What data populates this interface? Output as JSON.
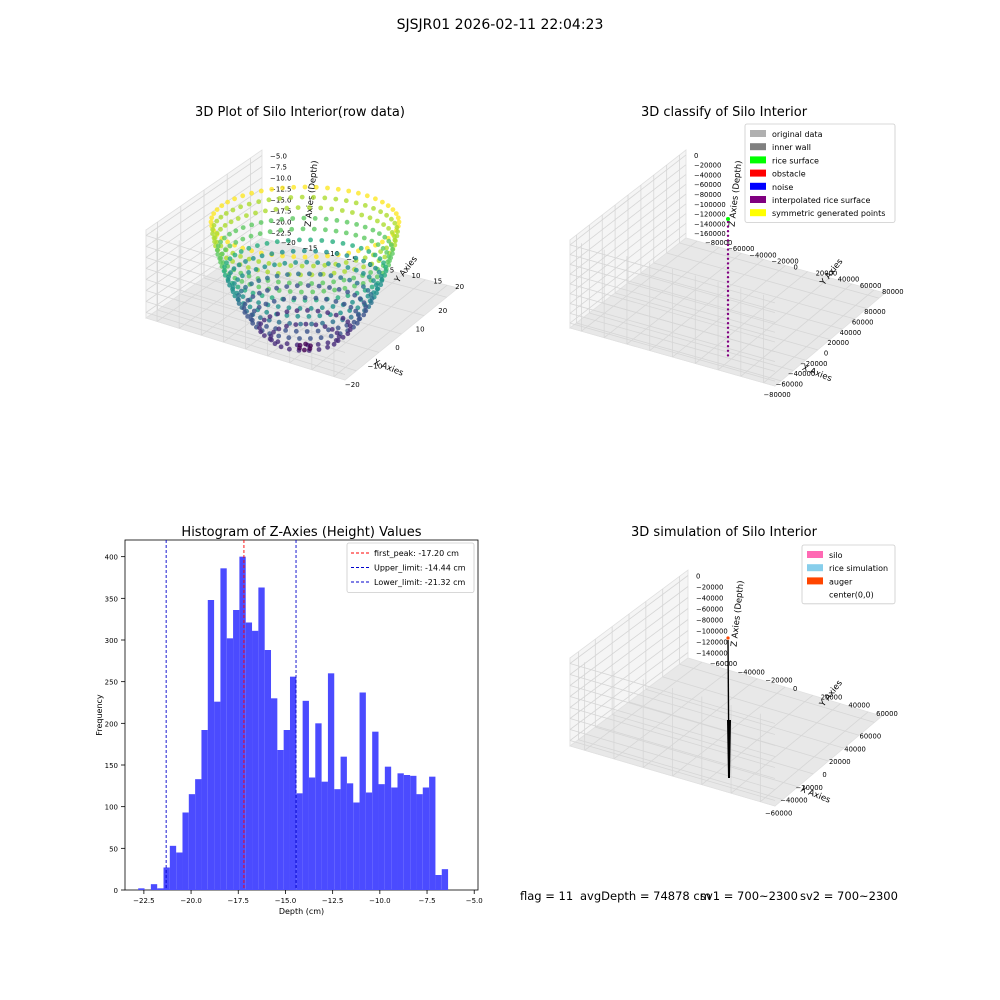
{
  "suptitle": "SJSJR01 2026-02-11 22:04:23",
  "footer": {
    "flag": "flag = 11",
    "avg_depth": "avgDepth = 74878 cm",
    "sv1": "sv1 = 700~2300",
    "sv2": "sv2 = 700~2300"
  },
  "colors": {
    "histogram_bar": "#4b4bff",
    "peak_line": "#ff0000",
    "limit_line": "#0000cc",
    "pane_fill": "#f2f2f2",
    "grid": "#d9d9d9"
  },
  "chart_data": [
    {
      "id": "raw3d",
      "type": "scatter",
      "projection": "3d",
      "title": "3D Plot of Silo Interior(row data)",
      "xlabel": "X Axies",
      "ylabel": "Y Axies",
      "zlabel": "Z Axies (Depth)",
      "xlim": [
        -24,
        22
      ],
      "ylim": [
        -22,
        22
      ],
      "zlim": [
        -24,
        -4
      ],
      "x_ticks": [
        "−20",
        "−10",
        "0",
        "10",
        "20"
      ],
      "y_ticks": [
        "−20",
        "−15",
        "−10",
        "−5",
        "0",
        "5",
        "10",
        "15",
        "20"
      ],
      "z_ticks": [
        "−5.0",
        "−7.5",
        "−10.0",
        "−12.5",
        "−15.0",
        "−17.5",
        "−20.0",
        "−22.5"
      ],
      "colormap": "viridis",
      "shape": "bowl",
      "bowl_rim_radius": 20,
      "bowl_top_depth": -5,
      "bowl_bottom_depth": -23,
      "grid": true
    },
    {
      "id": "classify3d",
      "type": "scatter",
      "projection": "3d",
      "title": "3D classify of Silo Interior",
      "xlabel": "X Axies",
      "ylabel": "Y Axies",
      "zlabel": "Z Axies (Depth)",
      "xlim": [
        -90000,
        90000
      ],
      "ylim": [
        -90000,
        90000
      ],
      "zlim": [
        -170000,
        5000
      ],
      "x_ticks": [
        "−80000",
        "−60000",
        "−40000",
        "−20000",
        "0",
        "20000",
        "40000",
        "60000",
        "80000"
      ],
      "y_ticks": [
        "−80000",
        "−60000",
        "−40000",
        "−20000",
        "0",
        "20000",
        "40000",
        "60000",
        "80000"
      ],
      "z_ticks": [
        "0",
        "−20000",
        "−40000",
        "−60000",
        "−80000",
        "−100000",
        "−120000",
        "−140000",
        "−160000"
      ],
      "legend_position": "top-right",
      "legend": [
        {
          "label": "original data",
          "color": "#b0b0b0"
        },
        {
          "label": "inner wall",
          "color": "#808080"
        },
        {
          "label": "rice surface",
          "color": "#00ff00"
        },
        {
          "label": "obstacle",
          "color": "#ff0000"
        },
        {
          "label": "noise",
          "color": "#0000ff"
        },
        {
          "label": "interpolated rice surface",
          "color": "#800080"
        },
        {
          "label": "symmetric generated points",
          "color": "#ffff00"
        }
      ],
      "grid": true
    },
    {
      "id": "histogram",
      "type": "bar",
      "title": "Histogram of Z-Axies (Height) Values",
      "xlabel": "Depth (cm)",
      "ylabel": "Frequency",
      "xlim": [
        -23.5,
        -4.8
      ],
      "ylim": [
        0,
        420
      ],
      "x_ticks": [
        -22.5,
        -20.0,
        -17.5,
        -15.0,
        -12.5,
        -10.0,
        -7.5,
        -5.0
      ],
      "x_tick_labels": [
        "−22.5",
        "−20.0",
        "−17.5",
        "−15.0",
        "−12.5",
        "−10.0",
        "−7.5",
        "−5.0"
      ],
      "y_ticks": [
        0,
        50,
        100,
        150,
        200,
        250,
        300,
        350,
        400
      ],
      "bin_start": -22.8,
      "bin_width": 0.335,
      "values": [
        2,
        0,
        7,
        2,
        27,
        53,
        45,
        93,
        115,
        133,
        192,
        348,
        226,
        386,
        302,
        336,
        400,
        321,
        311,
        363,
        288,
        230,
        168,
        192,
        256,
        116,
        227,
        135,
        200,
        130,
        260,
        121,
        160,
        128,
        105,
        237,
        117,
        190,
        127,
        148,
        123,
        140,
        138,
        137,
        115,
        123,
        136,
        18,
        25
      ],
      "vlines": [
        {
          "x": -17.2,
          "label": "first_peak: -17.20 cm",
          "color": "#ff0000"
        },
        {
          "x": -14.44,
          "label": "Upper_limit: -14.44 cm",
          "color": "#0000cc"
        },
        {
          "x": -21.32,
          "label": "Lower_limit: -21.32 cm",
          "color": "#0000cc"
        }
      ],
      "legend_position": "top-right"
    },
    {
      "id": "sim3d",
      "type": "line",
      "projection": "3d",
      "title": "3D simulation of Silo Interior",
      "xlabel": "X Axies",
      "ylabel": "Y Axies",
      "zlabel": "Z Axies (Depth)",
      "xlim": [
        -70000,
        70000
      ],
      "ylim": [
        -70000,
        70000
      ],
      "zlim": [
        -150000,
        5000
      ],
      "x_ticks": [
        "−60000",
        "−40000",
        "−20000",
        "0",
        "20000",
        "40000",
        "60000"
      ],
      "y_ticks": [
        "−60000",
        "−40000",
        "−20000",
        "0",
        "20000",
        "40000",
        "60000"
      ],
      "z_ticks": [
        "0",
        "−20000",
        "−40000",
        "−60000",
        "−80000",
        "−100000",
        "−120000",
        "−140000"
      ],
      "legend_position": "top-right",
      "legend": [
        {
          "label": "silo",
          "color": "#ff69b4"
        },
        {
          "label": "rice simulation",
          "color": "#87ceeb"
        },
        {
          "label": "auger",
          "color": "#ff4500"
        },
        {
          "label": "center(0,0)",
          "color": "#ffffff"
        }
      ],
      "grid": true
    }
  ]
}
